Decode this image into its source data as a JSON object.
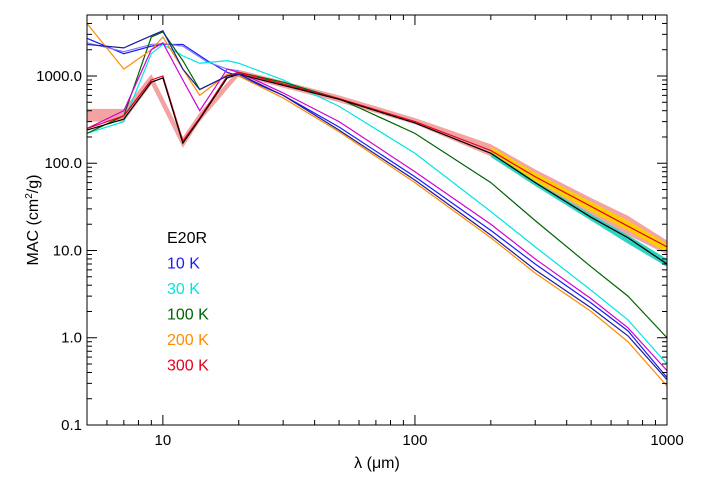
{
  "chart_data": {
    "type": "line",
    "xlabel": "λ (μm)",
    "ylabel_prefix": "MAC (cm",
    "ylabel_sup": "2",
    "ylabel_suffix": "/g)",
    "xscale": "log",
    "yscale": "log",
    "xlim": [
      5,
      1000
    ],
    "ylim": [
      0.1,
      5000
    ],
    "xticks": [
      {
        "value": 10,
        "label": "10"
      },
      {
        "value": 100,
        "label": "100"
      },
      {
        "value": 1000,
        "label": "1000"
      }
    ],
    "yticks": [
      {
        "value": 0.1,
        "label": "0.1"
      },
      {
        "value": 1,
        "label": "1.0"
      },
      {
        "value": 10,
        "label": "10.0"
      },
      {
        "value": 100,
        "label": "100.0"
      },
      {
        "value": 1000,
        "label": "1000.0"
      }
    ],
    "legend": {
      "placement": "lower-left",
      "entries": [
        {
          "label": "E20R",
          "color": "#000000"
        },
        {
          "label": "10 K",
          "color": "#1a1aff"
        },
        {
          "label": "30 K",
          "color": "#00e5e5"
        },
        {
          "label": "100 K",
          "color": "#006400"
        },
        {
          "label": "200 K",
          "color": "#ff8c00"
        },
        {
          "label": "300 K",
          "color": "#e8001c"
        }
      ]
    },
    "bands": [
      {
        "color": "#f4a3a3",
        "lower": [
          [
            5,
            300
          ],
          [
            7,
            300
          ],
          [
            9,
            800
          ],
          [
            12,
            150
          ],
          [
            14,
            300
          ],
          [
            20,
            1000
          ],
          [
            50,
            500
          ],
          [
            100,
            280
          ],
          [
            200,
            120
          ],
          [
            300,
            55
          ],
          [
            500,
            25
          ],
          [
            700,
            15
          ],
          [
            1000,
            9
          ]
        ],
        "upper": [
          [
            5,
            420
          ],
          [
            7,
            420
          ],
          [
            9,
            1050
          ],
          [
            12,
            200
          ],
          [
            14,
            380
          ],
          [
            20,
            1180
          ],
          [
            50,
            600
          ],
          [
            100,
            330
          ],
          [
            200,
            165
          ],
          [
            300,
            85
          ],
          [
            500,
            40
          ],
          [
            700,
            25
          ],
          [
            1000,
            13
          ]
        ]
      },
      {
        "color": "#ffd000",
        "lower": [
          [
            200,
            125
          ],
          [
            300,
            62
          ],
          [
            500,
            28
          ],
          [
            700,
            17
          ],
          [
            1000,
            9.5
          ]
        ],
        "upper": [
          [
            200,
            155
          ],
          [
            300,
            78
          ],
          [
            500,
            36
          ],
          [
            700,
            22
          ],
          [
            1000,
            12
          ]
        ]
      },
      {
        "color": "#2fd3c2",
        "lower": [
          [
            200,
            118
          ],
          [
            300,
            55
          ],
          [
            500,
            22
          ],
          [
            700,
            12
          ],
          [
            1000,
            6.5
          ]
        ],
        "upper": [
          [
            200,
            135
          ],
          [
            300,
            62
          ],
          [
            500,
            26
          ],
          [
            700,
            15
          ],
          [
            1000,
            8
          ]
        ]
      }
    ],
    "series": [
      {
        "color": "#1a1aff",
        "points": [
          [
            5,
            2700
          ],
          [
            7,
            1800
          ],
          [
            9,
            2200
          ],
          [
            10,
            2300
          ],
          [
            12,
            2300
          ],
          [
            15,
            1500
          ],
          [
            18,
            1100
          ],
          [
            20,
            1000
          ],
          [
            30,
            600
          ],
          [
            50,
            260
          ],
          [
            100,
            70
          ],
          [
            200,
            17
          ],
          [
            300,
            7
          ],
          [
            500,
            2.5
          ],
          [
            700,
            1.2
          ],
          [
            1000,
            0.35
          ]
        ]
      },
      {
        "color": "#7a7aff",
        "points": [
          [
            5,
            2400
          ],
          [
            7,
            1900
          ],
          [
            9,
            2300
          ],
          [
            10,
            2350
          ],
          [
            12,
            2200
          ],
          [
            15,
            1450
          ],
          [
            18,
            1200
          ],
          [
            20,
            1150
          ]
        ]
      },
      {
        "color": "#00e5e5",
        "points": [
          [
            5,
            220
          ],
          [
            7,
            300
          ],
          [
            9,
            1800
          ],
          [
            10,
            2300
          ],
          [
            12,
            1700
          ],
          [
            14,
            1400
          ],
          [
            18,
            1500
          ],
          [
            20,
            1400
          ],
          [
            30,
            900
          ],
          [
            50,
            450
          ],
          [
            100,
            130
          ],
          [
            200,
            28
          ],
          [
            300,
            11
          ],
          [
            500,
            3.5
          ],
          [
            700,
            1.6
          ],
          [
            1000,
            0.5
          ]
        ]
      },
      {
        "color": "#006400",
        "points": [
          [
            5,
            220
          ],
          [
            7,
            350
          ],
          [
            9,
            2800
          ],
          [
            10,
            3200
          ],
          [
            12,
            1500
          ],
          [
            14,
            700
          ],
          [
            18,
            1000
          ],
          [
            20,
            1100
          ],
          [
            30,
            850
          ],
          [
            50,
            550
          ],
          [
            100,
            220
          ],
          [
            200,
            60
          ],
          [
            300,
            22
          ],
          [
            500,
            6.5
          ],
          [
            700,
            3
          ],
          [
            1000,
            1.0
          ]
        ]
      },
      {
        "color": "#ff8c00",
        "points": [
          [
            5,
            4000
          ],
          [
            7,
            1200
          ],
          [
            9,
            2000
          ],
          [
            10,
            2800
          ],
          [
            12,
            1200
          ],
          [
            14,
            600
          ],
          [
            18,
            1050
          ],
          [
            20,
            1000
          ],
          [
            30,
            560
          ],
          [
            50,
            230
          ],
          [
            100,
            60
          ],
          [
            200,
            14
          ],
          [
            300,
            5.5
          ],
          [
            500,
            2
          ],
          [
            700,
            0.9
          ],
          [
            1000,
            0.28
          ]
        ]
      },
      {
        "color": "#d100d1",
        "points": [
          [
            5,
            250
          ],
          [
            7,
            400
          ],
          [
            9,
            2000
          ],
          [
            10,
            2400
          ],
          [
            12,
            900
          ],
          [
            14,
            400
          ],
          [
            18,
            1200
          ],
          [
            20,
            1100
          ],
          [
            30,
            640
          ],
          [
            50,
            300
          ],
          [
            100,
            80
          ],
          [
            200,
            20
          ],
          [
            300,
            8
          ],
          [
            500,
            2.8
          ],
          [
            700,
            1.3
          ],
          [
            1000,
            0.42
          ]
        ]
      },
      {
        "color": "#e8001c",
        "points": [
          [
            5,
            250
          ],
          [
            7,
            350
          ],
          [
            9,
            900
          ],
          [
            10,
            1000
          ],
          [
            12,
            180
          ],
          [
            14,
            330
          ],
          [
            18,
            1000
          ],
          [
            20,
            1100
          ],
          [
            50,
            550
          ],
          [
            100,
            300
          ],
          [
            200,
            140
          ],
          [
            300,
            70
          ],
          [
            500,
            32
          ],
          [
            700,
            19
          ],
          [
            1000,
            11
          ]
        ]
      },
      {
        "color": "#000000",
        "points": [
          [
            5,
            240
          ],
          [
            7,
            320
          ],
          [
            9,
            850
          ],
          [
            10,
            950
          ],
          [
            12,
            170
          ],
          [
            14,
            320
          ],
          [
            18,
            950
          ],
          [
            20,
            1050
          ],
          [
            50,
            540
          ],
          [
            100,
            290
          ],
          [
            200,
            130
          ],
          [
            300,
            60
          ],
          [
            500,
            24
          ],
          [
            700,
            14
          ],
          [
            1000,
            7
          ]
        ]
      },
      {
        "color": "#1c1c9a",
        "points": [
          [
            5,
            2300
          ],
          [
            7,
            2100
          ],
          [
            9,
            2900
          ],
          [
            10,
            3300
          ],
          [
            12,
            1200
          ],
          [
            14,
            700
          ],
          [
            18,
            1000
          ],
          [
            20,
            1050
          ],
          [
            30,
            600
          ],
          [
            50,
            240
          ],
          [
            100,
            64
          ],
          [
            200,
            15
          ],
          [
            300,
            6
          ],
          [
            500,
            2.2
          ],
          [
            700,
            1.05
          ],
          [
            1000,
            0.33
          ]
        ]
      }
    ]
  }
}
